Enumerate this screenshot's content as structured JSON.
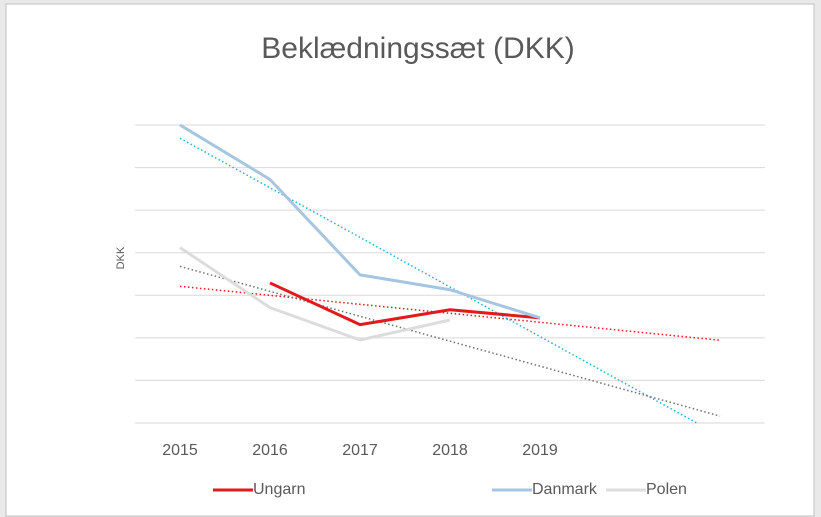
{
  "chart_data": {
    "type": "line",
    "title": "Beklædningssæt (DKK)",
    "y_label": "DKK",
    "categories": [
      "2015",
      "2016",
      "2017",
      "2018",
      "2019",
      null,
      null
    ],
    "series": [
      {
        "name": "Ungarn",
        "color": "#e31a1c",
        "trendline_color": "#e31a1c",
        "values": [
          null,
          3.29,
          2.31,
          2.66,
          2.47,
          null,
          null
        ]
      },
      {
        "name": "Danmark",
        "color": "#a6c5e0",
        "trendline_color": "#20b0d8",
        "values": [
          7.0,
          5.72,
          3.48,
          3.13,
          2.47,
          null,
          null
        ]
      },
      {
        "name": "Polen",
        "color": "#dcdcdc",
        "trendline_color": "#707070",
        "values": [
          4.12,
          2.71,
          1.95,
          2.42,
          null,
          null,
          null
        ]
      }
    ],
    "trendline": "linear",
    "ylim": [
      0,
      7
    ],
    "yticks": [
      0,
      1,
      2,
      3,
      4,
      5,
      6,
      7
    ],
    "grid": true,
    "legend": "bottom"
  }
}
